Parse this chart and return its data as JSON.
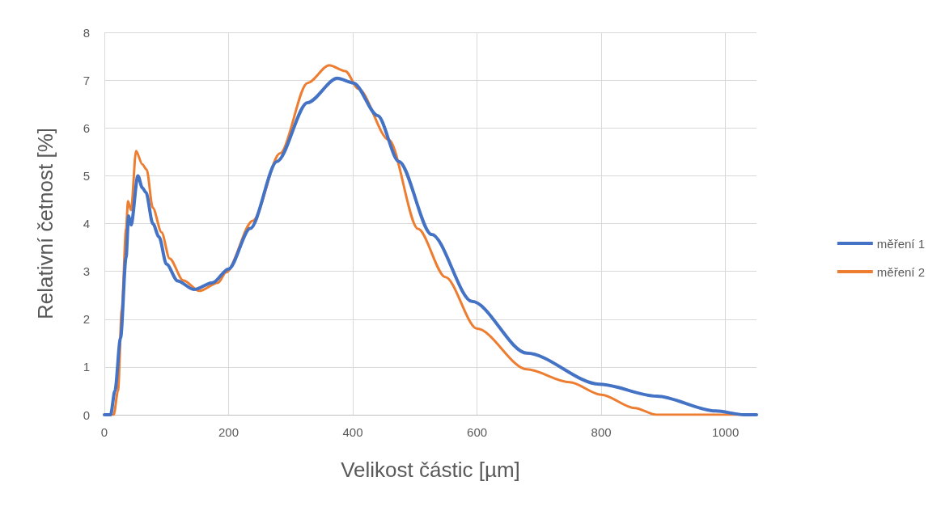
{
  "chart_data": {
    "type": "line",
    "xlabel": "Velikost částic [µm]",
    "ylabel": "Relativní četnost [%]",
    "xlim": [
      0,
      1050
    ],
    "xticks": [
      0,
      200,
      400,
      600,
      800,
      1000
    ],
    "ylim": [
      0,
      8
    ],
    "yticks": [
      0,
      1,
      2,
      3,
      4,
      5,
      6,
      7,
      8
    ],
    "grid": true,
    "legend": "right",
    "marker": "none",
    "line_style": "solid",
    "series": [
      {
        "name": "měření 1",
        "color": "#4472c4",
        "x": [
          0,
          10,
          17,
          26,
          35,
          39,
          43,
          54,
          61,
          67,
          78,
          88,
          100,
          118,
          144,
          174,
          200,
          235,
          278,
          327,
          375,
          401,
          440,
          474,
          527,
          592,
          680,
          797,
          889,
          984,
          1030,
          1050
        ],
        "values": [
          0,
          0,
          0.5,
          1.6,
          3.3,
          4.16,
          3.97,
          5.0,
          4.75,
          4.65,
          4.0,
          3.72,
          3.15,
          2.8,
          2.62,
          2.76,
          3.05,
          3.9,
          5.3,
          6.53,
          7.04,
          6.94,
          6.26,
          5.3,
          3.77,
          2.37,
          1.29,
          0.64,
          0.39,
          0.08,
          0,
          0
        ]
      },
      {
        "name": "měření 2",
        "color": "#ed7d31",
        "x": [
          0,
          15,
          22,
          28,
          35,
          38,
          43,
          51,
          61,
          68,
          78,
          92,
          105,
          127,
          153,
          183,
          196,
          239,
          283,
          327,
          362,
          388,
          409,
          458,
          505,
          549,
          600,
          680,
          749,
          800,
          854,
          889,
          1050
        ],
        "values": [
          0,
          0,
          0.5,
          2.2,
          3.9,
          4.47,
          4.28,
          5.52,
          5.24,
          5.13,
          4.33,
          3.82,
          3.27,
          2.81,
          2.59,
          2.76,
          2.98,
          4.06,
          5.47,
          6.94,
          7.31,
          7.19,
          6.82,
          5.75,
          3.89,
          2.88,
          1.8,
          0.95,
          0.68,
          0.42,
          0.14,
          0,
          0
        ]
      }
    ]
  }
}
